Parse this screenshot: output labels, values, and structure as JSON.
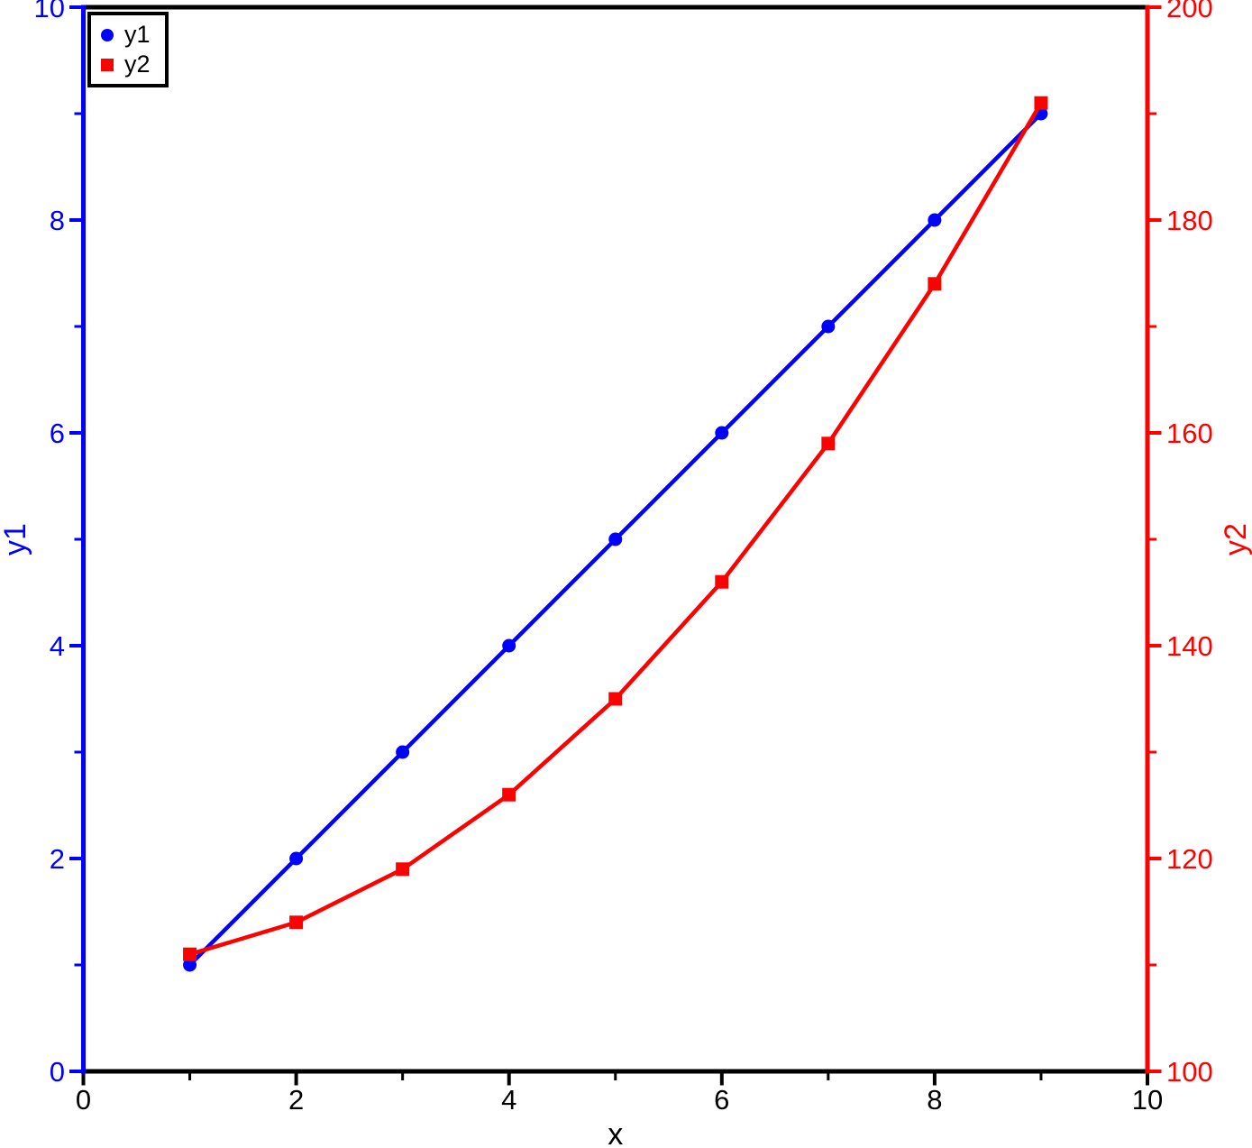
{
  "figure": {
    "background": "#ffffff"
  },
  "chart_data": {
    "type": "line",
    "title": "",
    "grid": false,
    "x": [
      1,
      2,
      3,
      4,
      5,
      6,
      7,
      8,
      9
    ],
    "series": [
      {
        "name": "y1",
        "axis": "left",
        "color": "#0000ff",
        "marker": "circle",
        "values": [
          1,
          2,
          3,
          4,
          5,
          6,
          7,
          8,
          9
        ]
      },
      {
        "name": "y2",
        "axis": "right",
        "color": "#ff0000",
        "marker": "square",
        "values": [
          111,
          114,
          119,
          126,
          135,
          146,
          159,
          174,
          191
        ]
      }
    ],
    "axes": {
      "x": {
        "label": "x",
        "min": 0,
        "max": 10,
        "color": "#000000",
        "major_ticks": [
          0,
          2,
          4,
          6,
          8,
          10
        ],
        "minor_ticks": [
          1,
          3,
          5,
          7,
          9
        ]
      },
      "left": {
        "label": "y1",
        "min": 0,
        "max": 10,
        "color": "#0000ff",
        "major_ticks": [
          0,
          2,
          4,
          6,
          8,
          10
        ],
        "minor_ticks": [
          1,
          3,
          5,
          7,
          9
        ]
      },
      "right": {
        "label": "y2",
        "min": 100,
        "max": 200,
        "color": "#ff0000",
        "major_ticks": [
          100,
          120,
          140,
          160,
          180,
          200
        ],
        "minor_ticks": [
          110,
          130,
          150,
          170,
          190
        ]
      }
    },
    "legend": {
      "position": "top-left",
      "entries": [
        {
          "label": "y1",
          "marker": "circle",
          "color": "#0000ff"
        },
        {
          "label": "y2",
          "marker": "square",
          "color": "#ff0000"
        }
      ]
    },
    "frame_color": "#000000"
  }
}
